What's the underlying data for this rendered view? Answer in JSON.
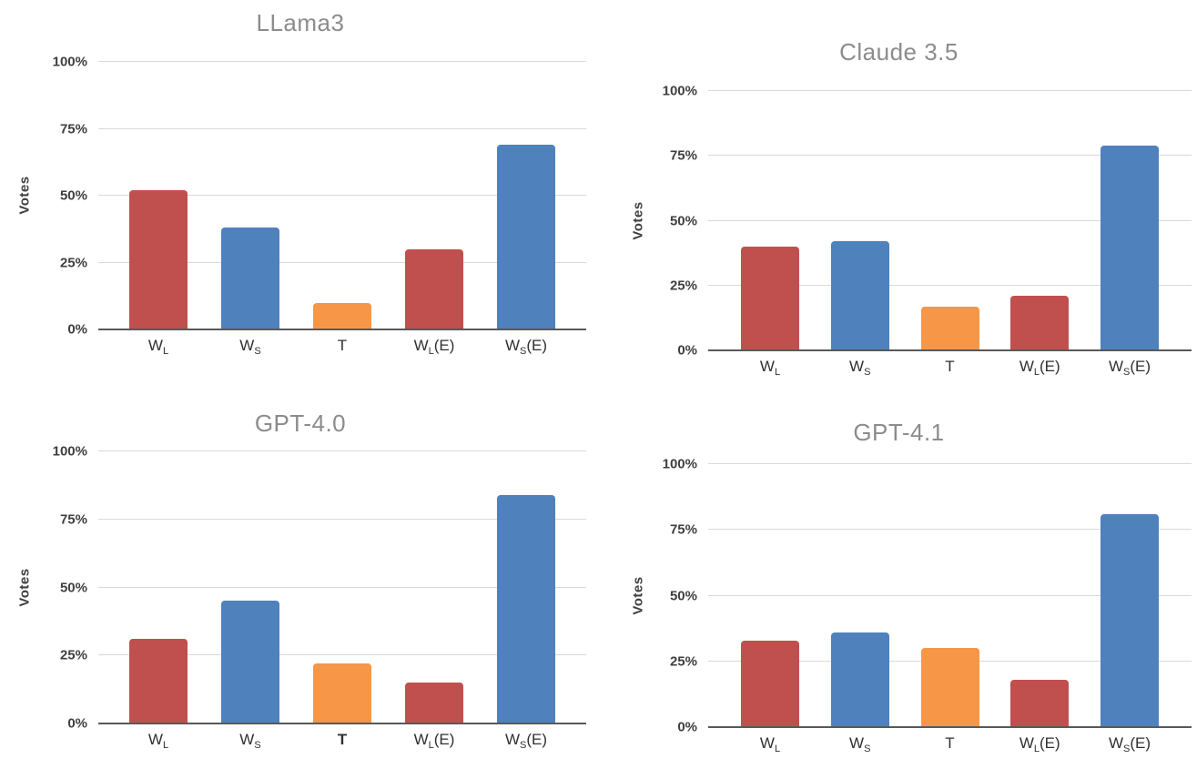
{
  "page": {
    "background": "#ffffff"
  },
  "ylabel": "Votes",
  "yticks": [
    "0%",
    "25%",
    "50%",
    "75%",
    "100%"
  ],
  "yticks_pct": [
    0,
    25,
    50,
    75,
    100
  ],
  "colors": {
    "bar_red": "#C0504D",
    "bar_blue": "#4F81BD",
    "bar_orange": "#F79646",
    "gridline": "#D9D9D9",
    "axis_line": "#595959",
    "title_text": "#8C8C8C",
    "tick_text": "#3F3F3F",
    "xlabel_text": "#303030"
  },
  "bar_colors": [
    "#C0504D",
    "#4F81BD",
    "#F79646",
    "#C0504D",
    "#4F81BD"
  ],
  "categories_rich": [
    {
      "main": "W",
      "sub": "L",
      "suffix": ""
    },
    {
      "main": "W",
      "sub": "S",
      "suffix": ""
    },
    {
      "main": "T",
      "sub": "",
      "suffix": ""
    },
    {
      "main": "W",
      "sub": "L",
      "suffix": "(E)"
    },
    {
      "main": "W",
      "sub": "S",
      "suffix": "(E)"
    }
  ],
  "chart_data": [
    {
      "type": "bar",
      "title": "LLama3",
      "ylabel": "Votes",
      "ylim": [
        0,
        100
      ],
      "yticks": [
        "0%",
        "25%",
        "50%",
        "75%",
        "100%"
      ],
      "categories": [
        "W_L",
        "W_S",
        "T",
        "W_L(E)",
        "W_S(E)"
      ],
      "values": [
        52,
        38,
        10,
        30,
        69
      ],
      "grid": true,
      "legend": false,
      "bold_category_index": null
    },
    {
      "type": "bar",
      "title": "Claude 3.5",
      "ylabel": "Votes",
      "ylim": [
        0,
        100
      ],
      "yticks": [
        "0%",
        "25%",
        "50%",
        "75%",
        "100%"
      ],
      "categories": [
        "W_L",
        "W_S",
        "T",
        "W_L(E)",
        "W_S(E)"
      ],
      "values": [
        40,
        42,
        17,
        21,
        79
      ],
      "grid": true,
      "legend": false,
      "bold_category_index": null
    },
    {
      "type": "bar",
      "title": "GPT-4.0",
      "ylabel": "Votes",
      "ylim": [
        0,
        100
      ],
      "yticks": [
        "0%",
        "25%",
        "50%",
        "75%",
        "100%"
      ],
      "categories": [
        "W_L",
        "W_S",
        "T",
        "W_L(E)",
        "W_S(E)"
      ],
      "values": [
        31,
        45,
        22,
        15,
        84
      ],
      "grid": true,
      "legend": false,
      "bold_category_index": 2
    },
    {
      "type": "bar",
      "title": "GPT-4.1",
      "ylabel": "Votes",
      "ylim": [
        0,
        100
      ],
      "yticks": [
        "0%",
        "25%",
        "50%",
        "75%",
        "100%"
      ],
      "categories": [
        "W_L",
        "W_S",
        "T",
        "W_L(E)",
        "W_S(E)"
      ],
      "values": [
        33,
        36,
        30,
        18,
        81
      ],
      "grid": true,
      "legend": false,
      "bold_category_index": null
    }
  ]
}
